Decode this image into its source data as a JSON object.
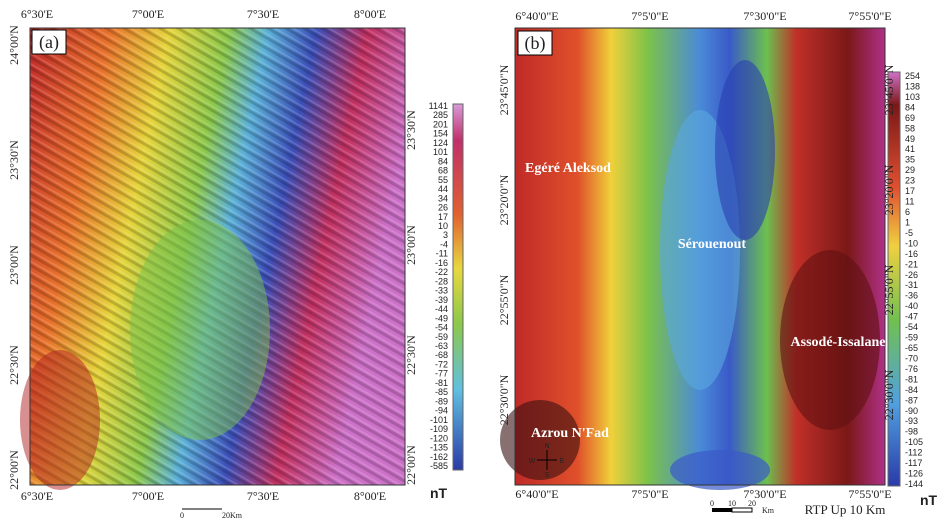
{
  "panel_a": {
    "label": "(a)",
    "top_ticks": [
      "6°30'E",
      "7°00'E",
      "7°30'E",
      "8°00'E"
    ],
    "bottom_ticks": [
      "6°30'E",
      "7°00'E",
      "7°30'E",
      "8°00'E"
    ],
    "left_ticks": [
      "24°00'N",
      "23°30'N",
      "23°00'N",
      "22°30'N",
      "22°00'N"
    ],
    "right_ticks": [
      "23°30'N",
      "23°00'N",
      "22°30'N",
      "22°00'N"
    ],
    "colorbar": [
      "1141",
      "285",
      "201",
      "154",
      "124",
      "101",
      "84",
      "68",
      "55",
      "44",
      "34",
      "26",
      "17",
      "10",
      "3",
      "-4",
      "-11",
      "-16",
      "-22",
      "-28",
      "-33",
      "-39",
      "-44",
      "-49",
      "-54",
      "-59",
      "-63",
      "-68",
      "-72",
      "-77",
      "-81",
      "-85",
      "-89",
      "-94",
      "-101",
      "-109",
      "-120",
      "-135",
      "-162",
      "-585"
    ],
    "unit": "nT",
    "scale": [
      "0",
      "20Km"
    ]
  },
  "panel_b": {
    "label": "(b)",
    "top_ticks": [
      "6°40'0\"E",
      "7°5'0\"E",
      "7°30'0\"E",
      "7°55'0\"E"
    ],
    "bottom_ticks": [
      "6°40'0\"E",
      "7°5'0\"E",
      "7°30'0\"E",
      "7°55'0\"E"
    ],
    "left_ticks": [
      "23°45'0\"N",
      "23°20'0\"N",
      "22°55'0\"N",
      "22°30'0\"N"
    ],
    "right_ticks": [
      "23°45'0\"N",
      "23°20'0\"N",
      "22°55'0\"N",
      "22°30'0\"N"
    ],
    "places": [
      "Egéré Aleksod",
      "Sérouenout",
      "Assodé-Issalane",
      "Azrou N'Fad"
    ],
    "compass": [
      "N",
      "S",
      "W",
      "E"
    ],
    "colorbar": [
      "254",
      "138",
      "103",
      "84",
      "69",
      "58",
      "49",
      "41",
      "35",
      "29",
      "23",
      "17",
      "11",
      "6",
      "1",
      "-5",
      "-10",
      "-16",
      "-21",
      "-26",
      "-31",
      "-36",
      "-40",
      "-47",
      "-54",
      "-59",
      "-65",
      "-70",
      "-76",
      "-81",
      "-84",
      "-87",
      "-90",
      "-93",
      "-98",
      "-105",
      "-112",
      "-117",
      "-126",
      "-144"
    ],
    "unit": "nT",
    "scale": [
      "0",
      "10",
      "20",
      "Km"
    ],
    "caption": "RTP Up 10 Km"
  }
}
